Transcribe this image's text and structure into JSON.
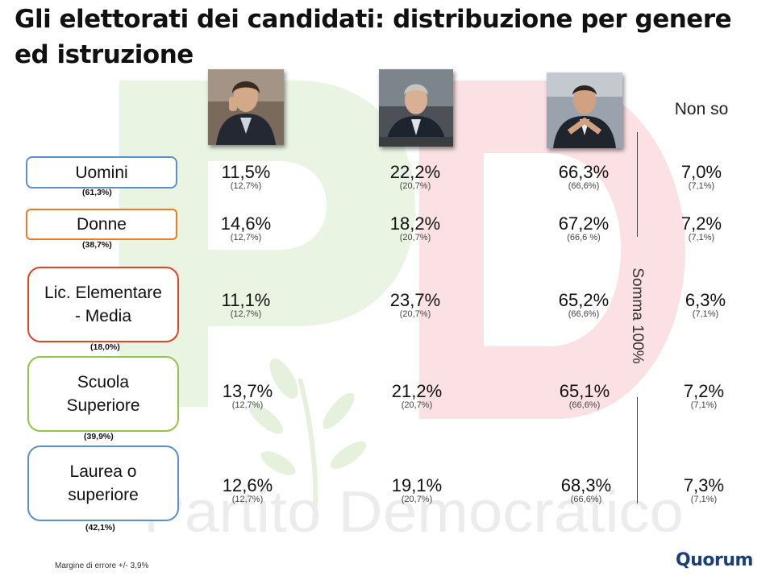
{
  "title": "Gli elettorati dei candidati: distribuzione per genere ed istruzione",
  "watermark": {
    "text": "Partito Democratico",
    "logo_letters": "PD"
  },
  "columns": {
    "candidate_photos": [
      "candidate-1-photo",
      "candidate-2-photo",
      "candidate-3-photo"
    ],
    "non_so_header": "Non so"
  },
  "rows": [
    {
      "label_lines": [
        "Uomini"
      ],
      "share": "(61,3%)",
      "values": [
        "11,5%",
        "22,2%",
        "66,3%",
        "7,0%"
      ],
      "refs": [
        "(12,7%)",
        "(20,7%)",
        "(66,6%)",
        "(7,1%)"
      ]
    },
    {
      "label_lines": [
        "Donne"
      ],
      "share": "(38,7%)",
      "values": [
        "14,6%",
        "18,2%",
        "67,2%",
        "7,2%"
      ],
      "refs": [
        "(12,7%)",
        "(20,7%)",
        "(66,6 %)",
        "(7,1%)"
      ]
    },
    {
      "label_lines": [
        "Lic. Elementare",
        "- Media"
      ],
      "share": "(18,0%)",
      "values": [
        "11,1%",
        "23,7%",
        "65,2%",
        "6,3%"
      ],
      "refs": [
        "(12,7%)",
        "(20,7%)",
        "(66,6%)",
        "(7,1%)"
      ]
    },
    {
      "label_lines": [
        "Scuola",
        "Superiore"
      ],
      "share": "(39,9%)",
      "values": [
        "13,7%",
        "21,2%",
        "65,1%",
        "7,2%"
      ],
      "refs": [
        "(12,7%)",
        "(20,7%)",
        "(66,6%)",
        "(7,1%)"
      ]
    },
    {
      "label_lines": [
        "Laurea o",
        "superiore"
      ],
      "share": "(42,1%)",
      "values": [
        "12,6%",
        "19,1%",
        "68,3%",
        "7,3%"
      ],
      "refs": [
        "(12,7%)",
        "(20,7%)",
        "(66,6%)",
        "(7,1%)"
      ]
    }
  ],
  "somma_note": "Somma 100%",
  "footnote": "Margine di errore +/- 3,9%",
  "brand": "Quorum",
  "colors": {
    "border_blue": "#5b8fd0",
    "border_orange": "#ec7b22",
    "border_red": "#e2441d",
    "border_green": "#8dc548",
    "watermark_green": "#eaf4e3",
    "watermark_red": "#fbe1e3",
    "brand_blue": "#1b3f7a"
  }
}
